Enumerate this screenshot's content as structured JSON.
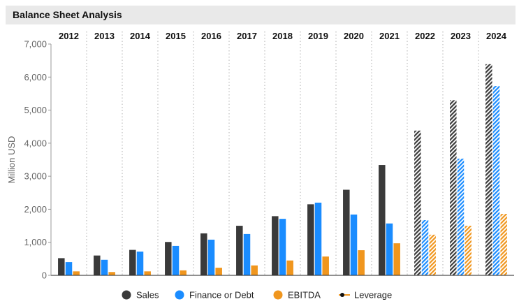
{
  "title": "Balance Sheet Analysis",
  "colors": {
    "sales": "#3a3a3a",
    "debt": "#1a8cff",
    "ebitda": "#f0961e",
    "leverage": "#f0961e",
    "grid": "#b0b0b0"
  },
  "chart_data": {
    "type": "bar",
    "title": "Balance Sheet Analysis",
    "xlabel": "",
    "ylabel": "Million USD",
    "ylim": [
      0,
      7000
    ],
    "yticks": [
      0,
      1000,
      2000,
      3000,
      4000,
      5000,
      6000,
      7000
    ],
    "ytick_labels": [
      "0",
      "1,000",
      "2,000",
      "3,000",
      "4,000",
      "5,000",
      "6,000",
      "7,000"
    ],
    "categories": [
      "2012",
      "2013",
      "2014",
      "2015",
      "2016",
      "2017",
      "2018",
      "2019",
      "2020",
      "2021",
      "2022",
      "2023",
      "2024"
    ],
    "estimated_categories": [
      "2022",
      "2023",
      "2024"
    ],
    "series": [
      {
        "name": "Sales",
        "key": "sales",
        "values": [
          520,
          600,
          770,
          1010,
          1270,
          1500,
          1790,
          2150,
          2590,
          3340,
          4380,
          5300,
          6390
        ]
      },
      {
        "name": "Finance or Debt",
        "key": "debt",
        "values": [
          400,
          470,
          720,
          890,
          1080,
          1250,
          1710,
          2200,
          1840,
          1570,
          1670,
          3530,
          5730
        ]
      },
      {
        "name": "EBITDA",
        "key": "ebitda",
        "values": [
          120,
          100,
          120,
          150,
          230,
          300,
          450,
          570,
          760,
          970,
          1230,
          1500,
          1860
        ]
      }
    ],
    "legend": {
      "position": "bottom",
      "items": [
        {
          "label": "Sales",
          "key": "sales",
          "marker": "circle"
        },
        {
          "label": "Finance or Debt",
          "key": "debt",
          "marker": "circle"
        },
        {
          "label": "EBITDA",
          "key": "ebitda",
          "marker": "circle"
        },
        {
          "label": "Leverage",
          "key": "leverage",
          "marker": "line-dot"
        }
      ]
    },
    "grid": {
      "vertical_dotted": true,
      "horizontal": false
    }
  }
}
